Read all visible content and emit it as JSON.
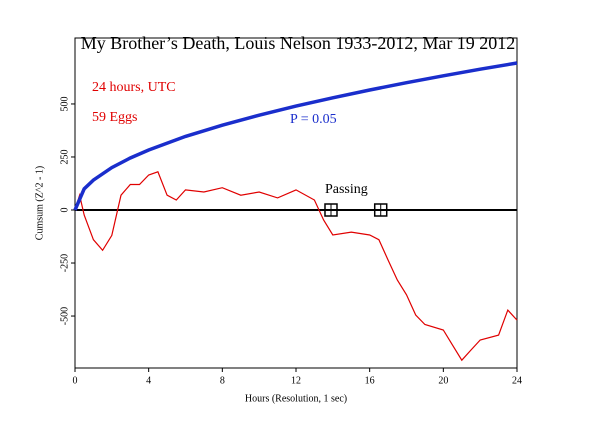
{
  "chart_data": {
    "type": "line",
    "title": "My Brother’s Death, Louis Nelson 1933-2012, Mar 19 2012",
    "x_label": "Hours (Resolution, 1 sec)",
    "y_label": "Cumsum (Z^2 - 1)",
    "annotations": [
      "24 hours, UTC",
      "59 Eggs"
    ],
    "xlim": [
      0,
      24
    ],
    "ylim": [
      -745,
      811
    ],
    "xticks": [
      0,
      4,
      8,
      12,
      16,
      20,
      24
    ],
    "yticks": [
      -500,
      -250,
      0,
      250,
      500
    ],
    "series": [
      {
        "name": "Cumsum",
        "color": "#e00000",
        "x": [
          0,
          0.25,
          0.5,
          1,
          1.5,
          2,
          2.5,
          3,
          3.5,
          4,
          4.5,
          5,
          5.5,
          6,
          7,
          8,
          9,
          10,
          11,
          12,
          13,
          13.5,
          14,
          15,
          16,
          16.5,
          17,
          17.5,
          18,
          18.5,
          19,
          20,
          20.5,
          21,
          21.5,
          22,
          23,
          23.5,
          24
        ],
        "values": [
          0,
          70,
          -24,
          -140,
          -190,
          -120,
          70,
          120,
          120,
          165,
          180,
          70,
          47,
          95,
          85,
          105,
          70,
          85,
          57,
          95,
          47,
          -47,
          -118,
          -104,
          -118,
          -140,
          -236,
          -330,
          -400,
          -495,
          -540,
          -566,
          -637,
          -708,
          -660,
          -613,
          -590,
          -472,
          -519
        ]
      },
      {
        "name": "P = 0.05",
        "color": "#1a2ecc",
        "x": [
          0,
          0.5,
          1,
          2,
          3,
          4,
          6,
          8,
          10,
          12,
          14,
          16,
          18,
          20,
          22,
          24
        ],
        "values": [
          0,
          100,
          141,
          200,
          245,
          283,
          347,
          400,
          447,
          490,
          529,
          566,
          600,
          633,
          664,
          693
        ]
      }
    ],
    "events": {
      "label": "Passing",
      "x": [
        13.9,
        16.6
      ]
    }
  }
}
